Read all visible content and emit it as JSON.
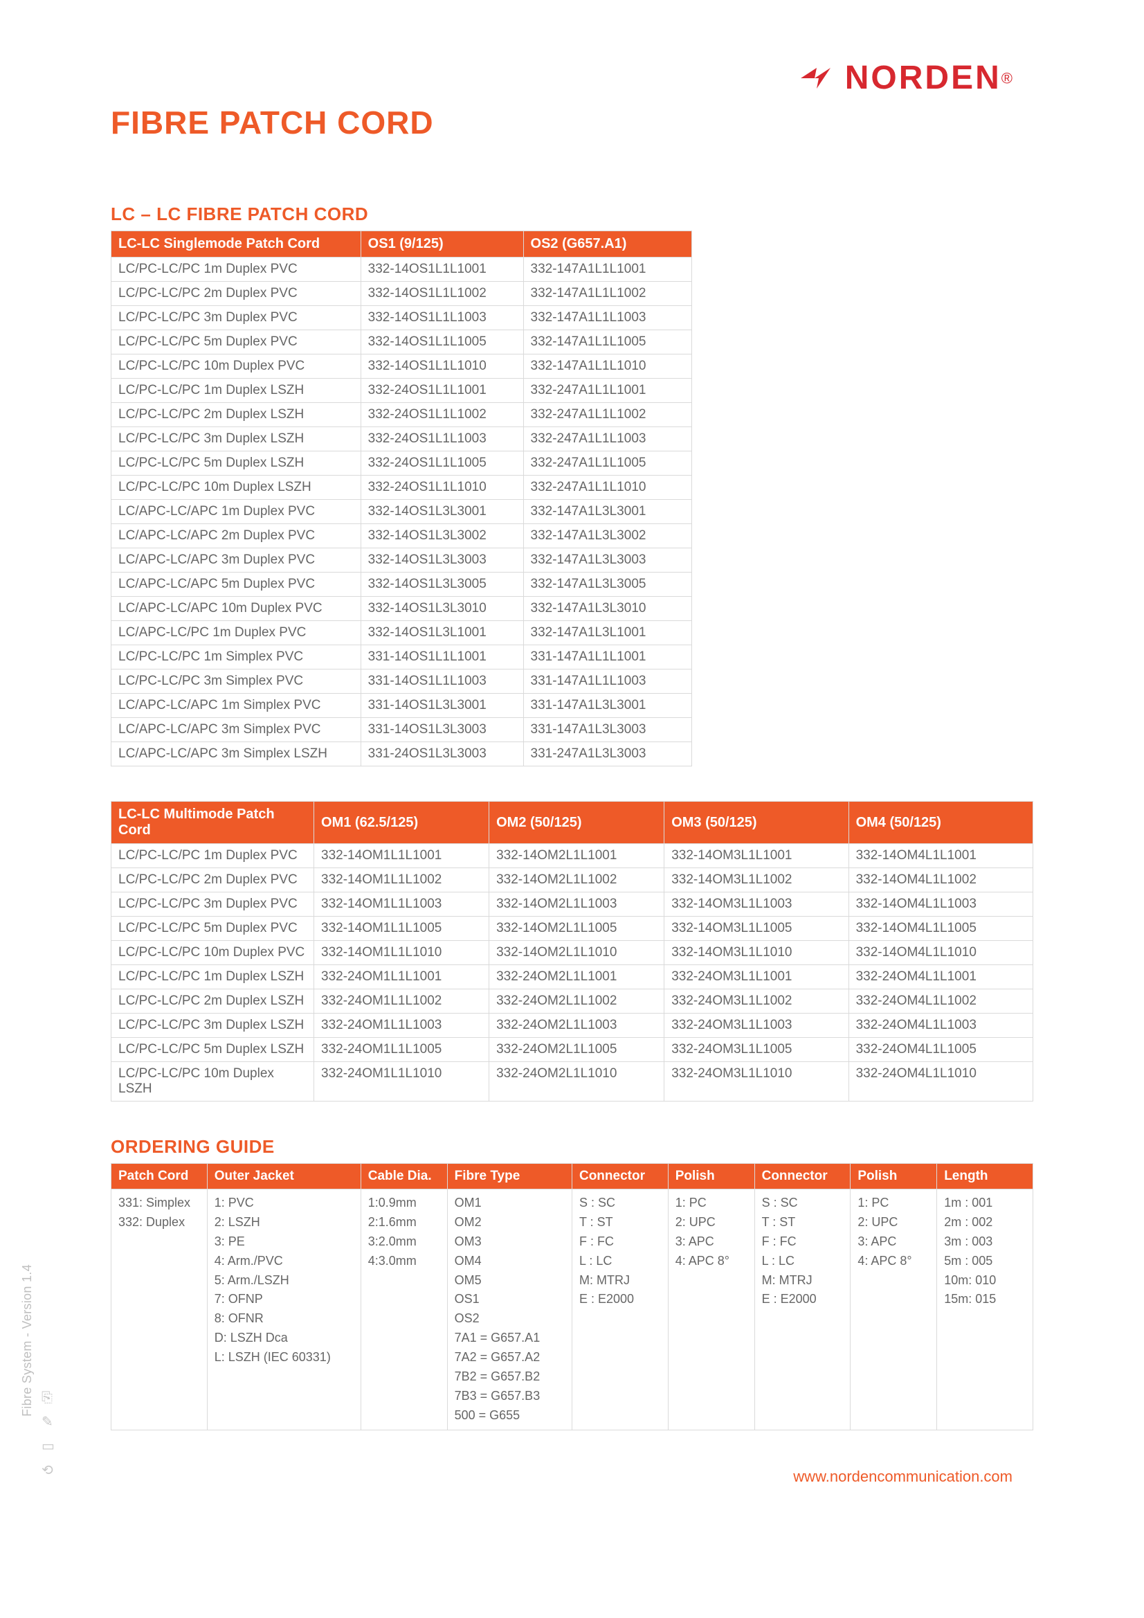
{
  "brand": {
    "name": "NORDEN",
    "reg": "®",
    "accent": "#d7282f"
  },
  "title": "FIBRE PATCH CORD",
  "accent": "#ee5a28",
  "section1": {
    "heading": "LC – LC FIBRE PATCH CORD",
    "headers": [
      "LC-LC Singlemode Patch Cord",
      "OS1 (9/125)",
      "OS2 (G657.A1)"
    ],
    "rows": [
      [
        "LC/PC-LC/PC 1m Duplex PVC",
        "332-14OS1L1L1001",
        "332-147A1L1L1001"
      ],
      [
        "LC/PC-LC/PC 2m Duplex PVC",
        "332-14OS1L1L1002",
        "332-147A1L1L1002"
      ],
      [
        "LC/PC-LC/PC 3m Duplex PVC",
        "332-14OS1L1L1003",
        "332-147A1L1L1003"
      ],
      [
        "LC/PC-LC/PC 5m Duplex PVC",
        "332-14OS1L1L1005",
        "332-147A1L1L1005"
      ],
      [
        "LC/PC-LC/PC 10m Duplex PVC",
        "332-14OS1L1L1010",
        "332-147A1L1L1010"
      ],
      [
        "LC/PC-LC/PC 1m Duplex LSZH",
        "332-24OS1L1L1001",
        "332-247A1L1L1001"
      ],
      [
        "LC/PC-LC/PC 2m Duplex LSZH",
        "332-24OS1L1L1002",
        "332-247A1L1L1002"
      ],
      [
        "LC/PC-LC/PC 3m Duplex LSZH",
        "332-24OS1L1L1003",
        "332-247A1L1L1003"
      ],
      [
        "LC/PC-LC/PC 5m Duplex LSZH",
        "332-24OS1L1L1005",
        "332-247A1L1L1005"
      ],
      [
        "LC/PC-LC/PC 10m Duplex LSZH",
        "332-24OS1L1L1010",
        "332-247A1L1L1010"
      ],
      [
        "LC/APC-LC/APC  1m Duplex PVC",
        "332-14OS1L3L3001",
        "332-147A1L3L3001"
      ],
      [
        "LC/APC-LC/APC  2m Duplex PVC",
        "332-14OS1L3L3002",
        "332-147A1L3L3002"
      ],
      [
        "LC/APC-LC/APC  3m Duplex PVC",
        "332-14OS1L3L3003",
        "332-147A1L3L3003"
      ],
      [
        "LC/APC-LC/APC  5m Duplex PVC",
        "332-14OS1L3L3005",
        "332-147A1L3L3005"
      ],
      [
        "LC/APC-LC/APC  10m Duplex PVC",
        "332-14OS1L3L3010",
        "332-147A1L3L3010"
      ],
      [
        "LC/APC-LC/PC  1m Duplex PVC",
        "332-14OS1L3L1001",
        "332-147A1L3L1001"
      ],
      [
        "LC/PC-LC/PC  1m Simplex PVC",
        "331-14OS1L1L1001",
        "331-147A1L1L1001"
      ],
      [
        "LC/PC-LC/PC  3m Simplex PVC",
        "331-14OS1L1L1003",
        "331-147A1L1L1003"
      ],
      [
        "LC/APC-LC/APC  1m Simplex PVC",
        "331-14OS1L3L3001",
        "331-147A1L3L3001"
      ],
      [
        "LC/APC-LC/APC  3m Simplex PVC",
        "331-14OS1L3L3003",
        "331-147A1L3L3003"
      ],
      [
        "LC/APC-LC/APC  3m Simplex LSZH",
        "331-24OS1L3L3003",
        "331-247A1L3L3003"
      ]
    ]
  },
  "section2": {
    "headers": [
      "LC-LC Multimode Patch Cord",
      "OM1 (62.5/125)",
      "OM2 (50/125)",
      "OM3 (50/125)",
      "OM4 (50/125)"
    ],
    "rows": [
      [
        "LC/PC-LC/PC 1m Duplex PVC",
        "332-14OM1L1L1001",
        "332-14OM2L1L1001",
        "332-14OM3L1L1001",
        "332-14OM4L1L1001"
      ],
      [
        "LC/PC-LC/PC 2m Duplex PVC",
        "332-14OM1L1L1002",
        "332-14OM2L1L1002",
        "332-14OM3L1L1002",
        "332-14OM4L1L1002"
      ],
      [
        "LC/PC-LC/PC 3m Duplex PVC",
        "332-14OM1L1L1003",
        "332-14OM2L1L1003",
        "332-14OM3L1L1003",
        "332-14OM4L1L1003"
      ],
      [
        "LC/PC-LC/PC 5m Duplex PVC",
        "332-14OM1L1L1005",
        "332-14OM2L1L1005",
        "332-14OM3L1L1005",
        "332-14OM4L1L1005"
      ],
      [
        "LC/PC-LC/PC 10m Duplex PVC",
        "332-14OM1L1L1010",
        "332-14OM2L1L1010",
        "332-14OM3L1L1010",
        "332-14OM4L1L1010"
      ],
      [
        "LC/PC-LC/PC 1m Duplex LSZH",
        "332-24OM1L1L1001",
        "332-24OM2L1L1001",
        "332-24OM3L1L1001",
        "332-24OM4L1L1001"
      ],
      [
        "LC/PC-LC/PC 2m Duplex LSZH",
        "332-24OM1L1L1002",
        "332-24OM2L1L1002",
        "332-24OM3L1L1002",
        "332-24OM4L1L1002"
      ],
      [
        "LC/PC-LC/PC 3m Duplex LSZH",
        "332-24OM1L1L1003",
        "332-24OM2L1L1003",
        "332-24OM3L1L1003",
        "332-24OM4L1L1003"
      ],
      [
        "LC/PC-LC/PC 5m Duplex LSZH",
        "332-24OM1L1L1005",
        "332-24OM2L1L1005",
        "332-24OM3L1L1005",
        "332-24OM4L1L1005"
      ],
      [
        "LC/PC-LC/PC 10m Duplex LSZH",
        "332-24OM1L1L1010",
        "332-24OM2L1L1010",
        "332-24OM3L1L1010",
        "332-24OM4L1L1010"
      ]
    ]
  },
  "ordering": {
    "heading": "ORDERING GUIDE",
    "headers": [
      "Patch Cord",
      "Outer Jacket",
      "Cable Dia.",
      "Fibre Type",
      "Connector",
      "Polish",
      "Connector",
      "Polish",
      "Length"
    ],
    "row": {
      "patch": "331: Simplex\n332: Duplex",
      "jacket": "1: PVC\n2: LSZH\n3: PE\n4: Arm./PVC\n5: Arm./LSZH\n7: OFNP\n8: OFNR\nD: LSZH Dca\nL: LSZH (IEC 60331)",
      "dia": "1:0.9mm\n2:1.6mm\n3:2.0mm\n4:3.0mm",
      "fibre": "OM1\nOM2\nOM3\nOM4\nOM5\nOS1\nOS2\n7A1 = G657.A1\n7A2 = G657.A2\n7B2 = G657.B2\n7B3 = G657.B3\n500 = G655",
      "conn1": "S : SC\nT : ST\nF : FC\nL : LC\nM: MTRJ\nE : E2000",
      "pol1": "1: PC\n2: UPC\n3: APC\n4: APC 8°",
      "conn2": "S : SC\nT : ST\nF : FC\nL : LC\nM: MTRJ\nE : E2000",
      "pol2": "1: PC\n2: UPC\n3: APC\n4: APC 8°",
      "len": "1m  : 001\n2m  : 002\n3m  : 003\n5m  : 005\n10m: 010\n15m: 015"
    }
  },
  "footer": {
    "url": "www.nordencommunication.com"
  },
  "side": {
    "text": "Fibre System - Version 1.4"
  }
}
